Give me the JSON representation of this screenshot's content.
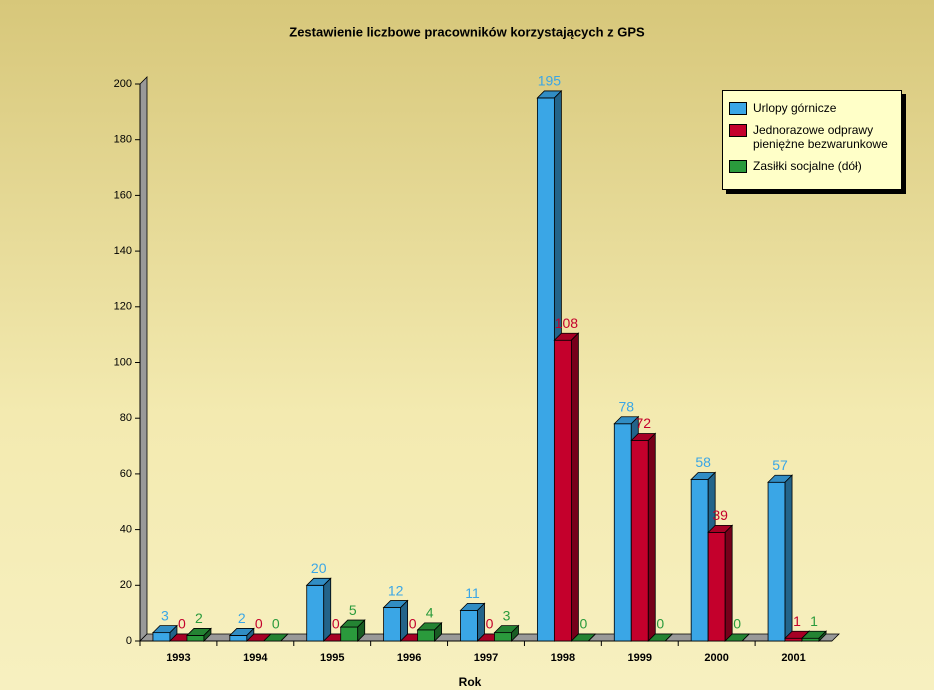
{
  "chart_data": {
    "type": "bar3d",
    "title": "Zestawienie liczbowe pracowników korzystających z GPS",
    "x_label": "Rok",
    "categories": [
      "1993",
      "1994",
      "1995",
      "1996",
      "1997",
      "1998",
      "1999",
      "2000",
      "2001"
    ],
    "series": [
      {
        "name": "Urlopy górnicze",
        "color": "#3aa6e6",
        "values": [
          3,
          2,
          20,
          12,
          11,
          195,
          78,
          58,
          57
        ]
      },
      {
        "name": "Jednorazowe odprawy pieniężne bezwarunkowe",
        "color": "#c4002c",
        "values": [
          0,
          0,
          0,
          0,
          0,
          108,
          72,
          39,
          1
        ]
      },
      {
        "name": "Zasiłki socjalne (dół)",
        "color": "#2a9a3c",
        "values": [
          2,
          0,
          5,
          4,
          3,
          0,
          0,
          0,
          1
        ]
      }
    ],
    "ylim": [
      0,
      200
    ],
    "yticks": [
      0,
      20,
      40,
      60,
      80,
      100,
      120,
      140,
      160,
      180,
      200
    ],
    "legend": "top-right"
  }
}
